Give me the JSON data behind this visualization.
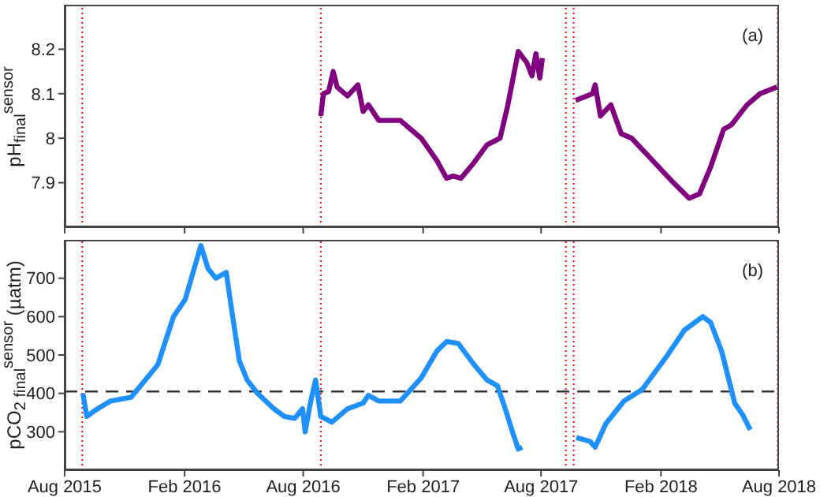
{
  "chart_data": [
    {
      "type": "line",
      "ylabel": "pH$_{final}$$^{sensor}$",
      "annotations": [
        "(a)"
      ],
      "tick_labels": "y",
      "xlim": [
        "2015-08-01",
        "2018-08-01"
      ],
      "xticks": [
        {
          "value": "2015-08-01",
          "label": null
        },
        {
          "value": "2016-02-01",
          "label": null
        },
        {
          "value": "2016-08-01",
          "label": null
        },
        {
          "value": "2017-02-01",
          "label": null
        },
        {
          "value": "2017-08-01",
          "label": null
        },
        {
          "value": "2018-02-01",
          "label": null
        },
        {
          "value": "2018-08-01",
          "label": null
        }
      ],
      "ylim": [
        7.8,
        8.3
      ],
      "yticks": [
        7.9,
        8,
        8.1,
        8.2
      ],
      "ref_lines": [
        {
          "axis": "x",
          "value": "2015-08-28",
          "color": "#ff0000",
          "line_style": "dotted"
        },
        {
          "axis": "x",
          "value": "2016-08-28",
          "color": "#ff0000",
          "line_style": "dotted"
        },
        {
          "axis": "x",
          "value": "2017-09-08",
          "color": "#ff0000",
          "line_style": "dotted"
        },
        {
          "axis": "x",
          "value": "2017-09-20",
          "color": "#ff0000",
          "line_style": "dotted"
        },
        {
          "axis": "x",
          "value": "2018-07-30",
          "color": "#ff0000",
          "line_style": "dotted"
        }
      ],
      "series": [
        {
          "color": "#800080",
          "x": [
            "2016-08-28",
            "2016-09-01",
            "2016-09-09",
            "2016-09-16",
            "2016-09-22",
            "2016-10-08",
            "2016-10-24",
            "2016-11-01",
            "2016-11-09",
            "2016-11-25",
            "2016-12-28",
            "2017-01-29",
            "2017-02-22",
            "2017-03-09",
            "2017-03-19",
            "2017-03-31",
            "2017-04-20",
            "2017-05-10",
            "2017-05-30",
            "2017-06-11",
            "2017-06-27",
            "2017-07-10",
            "2017-07-18",
            "2017-07-24",
            "2017-07-30",
            "2017-08-03",
            "2017-08-20",
            "2017-09-23",
            "2017-10-19",
            "2017-10-23",
            "2017-10-31",
            "2017-11-16",
            "2017-12-02",
            "2017-12-18",
            "2018-01-19",
            "2018-02-20",
            "2018-03-16",
            "2018-04-01",
            "2018-04-18",
            "2018-05-08",
            "2018-05-20",
            "2018-06-13",
            "2018-07-03",
            "2018-07-29"
          ],
          "values": [
            8.05,
            8.1,
            8.105,
            8.15,
            8.115,
            8.095,
            8.12,
            8.06,
            8.075,
            8.04,
            8.04,
            8.0,
            7.95,
            7.91,
            7.915,
            7.91,
            7.945,
            7.985,
            8.0,
            8.075,
            8.195,
            8.17,
            8.14,
            8.19,
            8.135,
            8.18,
            null,
            8.085,
            8.1,
            8.12,
            8.05,
            8.075,
            8.01,
            8.0,
            7.95,
            7.9,
            7.865,
            7.875,
            7.935,
            8.02,
            8.03,
            8.075,
            8.1,
            8.115
          ]
        }
      ]
    },
    {
      "type": "line",
      "ylabel": "pCO$_{2 final}$$^{sensor}$ (µatm)",
      "annotations": [
        "(b)"
      ],
      "xlim": [
        "2015-08-01",
        "2018-08-01"
      ],
      "xticks": [
        {
          "value": "2015-08-01",
          "label": "Aug 2015"
        },
        {
          "value": "2016-02-01",
          "label": "Feb 2016"
        },
        {
          "value": "2016-08-01",
          "label": "Aug 2016"
        },
        {
          "value": "2017-02-01",
          "label": "Feb 2017"
        },
        {
          "value": "2017-08-01",
          "label": "Aug 2017"
        },
        {
          "value": "2018-02-01",
          "label": "Feb 2018"
        },
        {
          "value": "2018-08-01",
          "label": "Aug 2018"
        }
      ],
      "ylim": [
        200,
        800
      ],
      "yticks": [
        300,
        400,
        500,
        600,
        700
      ],
      "ref_lines": [
        {
          "axis": "x",
          "value": "2015-08-28",
          "color": "#ff0000",
          "line_style": "dotted"
        },
        {
          "axis": "x",
          "value": "2016-08-28",
          "color": "#ff0000",
          "line_style": "dotted"
        },
        {
          "axis": "x",
          "value": "2017-09-08",
          "color": "#ff0000",
          "line_style": "dotted"
        },
        {
          "axis": "x",
          "value": "2017-09-20",
          "color": "#ff0000",
          "line_style": "dotted"
        },
        {
          "axis": "x",
          "value": "2018-07-30",
          "color": "#ff0000",
          "line_style": "dotted"
        },
        {
          "axis": "y",
          "value": 405,
          "color": "#333333",
          "line_style": "dashed"
        }
      ],
      "series": [
        {
          "color": "#1e90ff",
          "x": [
            "2015-08-29",
            "2015-09-04",
            "2015-09-16",
            "2015-10-10",
            "2015-11-11",
            "2015-12-22",
            "2016-01-15",
            "2016-02-02",
            "2016-02-26",
            "2016-03-08",
            "2016-03-20",
            "2016-04-05",
            "2016-04-13",
            "2016-04-25",
            "2016-05-07",
            "2016-05-23",
            "2016-06-17",
            "2016-07-03",
            "2016-07-19",
            "2016-07-31",
            "2016-08-04",
            "2016-08-12",
            "2016-08-20",
            "2016-08-28",
            "2016-09-14",
            "2016-10-08",
            "2016-11-01",
            "2016-11-09",
            "2016-11-25",
            "2016-12-28",
            "2017-01-29",
            "2017-02-22",
            "2017-03-09",
            "2017-03-27",
            "2017-04-20",
            "2017-05-10",
            "2017-05-26",
            "2017-06-07",
            "2017-06-19",
            "2017-06-27",
            "2017-07-03",
            "2017-08-20",
            "2017-09-24",
            "2017-10-15",
            "2017-10-23",
            "2017-11-08",
            "2017-12-06",
            "2018-01-03",
            "2018-02-09",
            "2018-03-09",
            "2018-04-06",
            "2018-04-18",
            "2018-05-05",
            "2018-05-25",
            "2018-06-06",
            "2018-06-18"
          ],
          "values": [
            400,
            340,
            355,
            380,
            390,
            475,
            600,
            645,
            785,
            725,
            700,
            715,
            620,
            485,
            435,
            400,
            360,
            340,
            335,
            360,
            300,
            375,
            435,
            340,
            325,
            360,
            375,
            395,
            380,
            380,
            440,
            510,
            535,
            530,
            475,
            435,
            420,
            360,
            295,
            255,
            260,
            null,
            285,
            275,
            260,
            320,
            380,
            410,
            495,
            565,
            600,
            585,
            510,
            375,
            345,
            305
          ]
        }
      ]
    }
  ]
}
